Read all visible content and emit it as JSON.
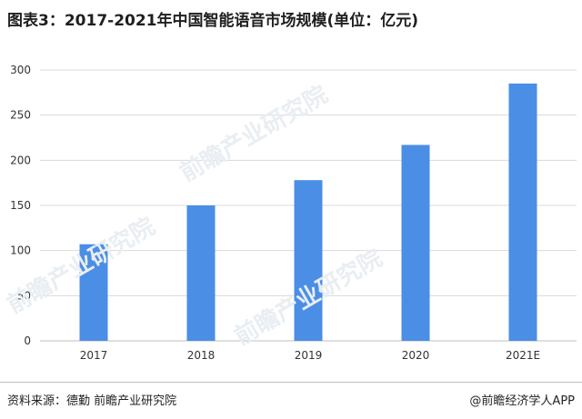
{
  "chart_data": {
    "type": "bar",
    "title": "图表3：2017-2021年中国智能语音市场规模(单位：亿元)",
    "xlabel": "",
    "ylabel": "",
    "categories": [
      "2017",
      "2018",
      "2019",
      "2020",
      "2021E"
    ],
    "values": [
      107,
      150,
      178,
      217,
      285
    ],
    "ylim": [
      0,
      300
    ],
    "yticks": [
      0,
      50,
      100,
      150,
      200,
      250,
      300
    ],
    "grid": true,
    "legend": "none",
    "bar_color": "#4a8ee6"
  },
  "watermark": {
    "text": "前瞻产业研究院"
  },
  "footer": {
    "source": "资料来源：德勤 前瞻产业研究院",
    "credit": "@前瞻经济学人APP"
  }
}
